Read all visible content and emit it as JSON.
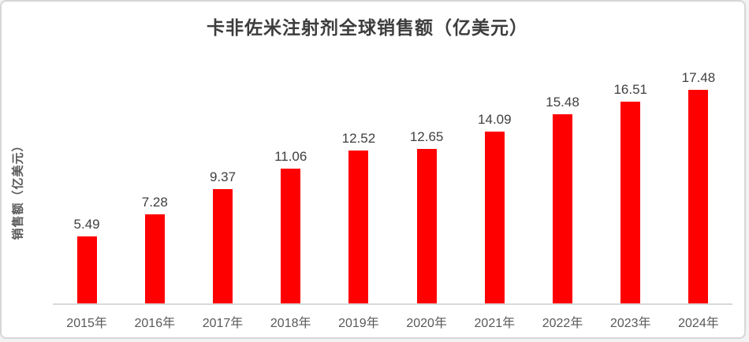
{
  "colors": {
    "bar": "#FF0000",
    "title": "#3D3D3D",
    "value_label": "#404040",
    "axis_label": "#595959",
    "axis_line": "#D9D9D9",
    "card_background": "#FFFFFF",
    "card_border": "#D6D6D6"
  },
  "chart_data": {
    "type": "bar",
    "title": "卡非佐米注射剂全球销售额（亿美元）",
    "xlabel": "",
    "ylabel": "销售额（亿美元）",
    "categories": [
      "2015年",
      "2016年",
      "2017年",
      "2018年",
      "2019年",
      "2020年",
      "2021年",
      "2022年",
      "2023年",
      "2024年"
    ],
    "values": [
      5.49,
      7.28,
      9.37,
      11.06,
      12.52,
      12.65,
      14.09,
      15.48,
      16.51,
      17.48
    ],
    "ylim": [
      0,
      20
    ],
    "grid": false,
    "legend": false,
    "data_labels": true,
    "bar_color": "#FF0000"
  }
}
